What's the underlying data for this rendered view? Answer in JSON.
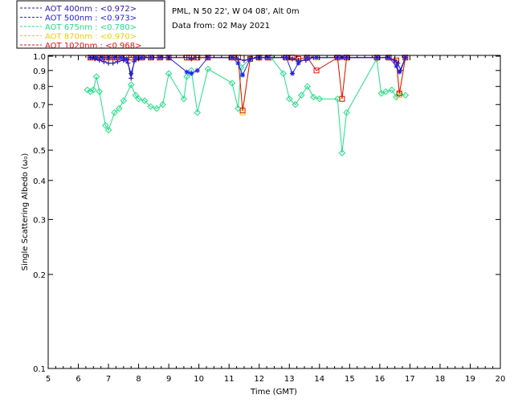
{
  "chart_data": {
    "type": "line",
    "title": "PML, N 50 22', W 04 08', Alt 0m",
    "subtitle": "Data from: 02 May 2021",
    "xlabel": "Time (GMT)",
    "ylabel": "Single Scattering Albedo (ω₀)",
    "xlim": [
      5,
      20
    ],
    "ylim": [
      0.1,
      1.0
    ],
    "yscale": "log",
    "x_ticks": [
      "5",
      "6",
      "7",
      "8",
      "9",
      "10",
      "11",
      "12",
      "13",
      "14",
      "15",
      "16",
      "17",
      "18",
      "19",
      "20"
    ],
    "y_ticks": [
      "0.1",
      "0.2",
      "0.3",
      "0.4",
      "0.5",
      "0.6",
      "0.7",
      "0.8",
      "0.9",
      "1.0"
    ],
    "y_tick_values": [
      0.1,
      0.2,
      0.3,
      0.4,
      0.5,
      0.6,
      0.7,
      0.8,
      0.9,
      1.0
    ],
    "series": [
      {
        "name": "AOT  400nm",
        "legend": "AOT  400nm : <0.972>",
        "color": "#2a1aa8",
        "marker": "plus",
        "x": [
          6.4,
          6.55,
          6.7,
          6.85,
          7.0,
          7.15,
          7.3,
          7.5,
          7.65,
          7.75,
          7.85,
          8.0,
          8.2,
          8.5,
          8.8,
          9.0,
          9.6,
          9.75,
          9.9,
          10.3,
          11.1,
          11.3,
          11.5,
          11.7,
          11.9,
          12.2,
          12.8,
          13.1,
          13.3,
          13.55,
          13.8,
          14.6,
          14.75,
          14.9,
          15.9,
          16.2,
          16.5,
          16.6,
          16.7,
          16.85
        ],
        "y": [
          0.99,
          0.98,
          0.97,
          0.96,
          0.95,
          0.95,
          0.96,
          0.97,
          0.95,
          0.85,
          0.96,
          0.98,
          0.99,
          0.99,
          0.99,
          0.99,
          0.99,
          0.98,
          0.99,
          0.99,
          0.99,
          0.98,
          0.97,
          0.98,
          0.99,
          0.99,
          0.99,
          0.98,
          0.97,
          0.97,
          0.99,
          0.99,
          0.99,
          0.99,
          0.99,
          0.99,
          0.97,
          0.95,
          0.9,
          0.99
        ]
      },
      {
        "name": "AOT  500nm",
        "legend": "AOT  500nm : <0.973>",
        "color": "#2222ee",
        "marker": "star",
        "x": [
          6.4,
          6.6,
          6.8,
          7.0,
          7.2,
          7.4,
          7.6,
          7.75,
          7.9,
          8.1,
          8.4,
          8.7,
          9.0,
          9.6,
          9.75,
          9.95,
          10.3,
          11.1,
          11.3,
          11.45,
          11.7,
          12.0,
          12.3,
          12.9,
          13.1,
          13.3,
          13.6,
          13.9,
          14.6,
          14.75,
          14.9,
          15.9,
          16.3,
          16.55,
          16.65,
          16.85
        ],
        "y": [
          0.99,
          0.99,
          0.99,
          0.99,
          0.99,
          0.99,
          0.98,
          0.88,
          0.99,
          0.99,
          0.99,
          0.99,
          0.99,
          0.89,
          0.88,
          0.9,
          0.99,
          0.99,
          0.95,
          0.87,
          0.98,
          0.99,
          0.99,
          0.99,
          0.88,
          0.95,
          0.99,
          0.99,
          0.99,
          0.99,
          0.99,
          0.99,
          0.99,
          0.93,
          0.89,
          0.99
        ]
      },
      {
        "name": "AOT  675nm",
        "legend": "AOT  675nm : <0.780>",
        "color": "#22dd88",
        "marker": "diamond",
        "x": [
          6.3,
          6.4,
          6.5,
          6.6,
          6.7,
          6.9,
          7.0,
          7.2,
          7.35,
          7.5,
          7.75,
          7.9,
          8.0,
          8.2,
          8.4,
          8.6,
          8.8,
          9.0,
          9.5,
          9.6,
          9.75,
          9.95,
          10.3,
          11.1,
          11.3,
          11.4,
          11.7,
          12.0,
          12.4,
          12.8,
          13.0,
          13.2,
          13.4,
          13.6,
          13.8,
          14.0,
          14.6,
          14.75,
          14.9,
          15.9,
          16.05,
          16.2,
          16.4,
          16.55,
          16.65,
          16.85
        ],
        "y": [
          0.78,
          0.77,
          0.78,
          0.86,
          0.77,
          0.6,
          0.58,
          0.66,
          0.68,
          0.72,
          0.81,
          0.75,
          0.73,
          0.72,
          0.69,
          0.68,
          0.7,
          0.88,
          0.73,
          0.86,
          0.9,
          0.66,
          0.91,
          0.82,
          0.68,
          0.92,
          0.98,
          0.99,
          0.99,
          0.88,
          0.73,
          0.7,
          0.75,
          0.8,
          0.74,
          0.73,
          0.73,
          0.49,
          0.66,
          0.98,
          0.76,
          0.77,
          0.78,
          0.74,
          0.76,
          0.75
        ]
      },
      {
        "name": "AOT  870nm",
        "legend": "AOT  870nm : <0.970>",
        "color": "#f2cc00",
        "marker": "square",
        "x": [
          6.4,
          6.6,
          6.8,
          7.0,
          7.2,
          7.4,
          7.6,
          7.75,
          7.9,
          8.1,
          8.4,
          8.7,
          9.0,
          9.6,
          9.75,
          9.95,
          10.3,
          11.1,
          11.3,
          11.45,
          11.7,
          12.0,
          12.3,
          12.9,
          13.1,
          13.3,
          13.6,
          13.9,
          14.6,
          14.75,
          14.9,
          15.9,
          16.3,
          16.55,
          16.65,
          16.85
        ],
        "y": [
          0.99,
          0.99,
          0.99,
          0.99,
          0.99,
          0.99,
          0.99,
          0.99,
          0.99,
          0.99,
          0.99,
          0.99,
          0.99,
          0.99,
          0.99,
          0.99,
          0.99,
          0.99,
          0.99,
          0.66,
          0.98,
          0.99,
          0.99,
          0.99,
          0.99,
          0.98,
          0.99,
          0.99,
          0.99,
          0.73,
          0.99,
          0.99,
          0.99,
          0.96,
          0.75,
          0.99
        ]
      },
      {
        "name": "AOT 1020nm",
        "legend": "AOT 1020nm : <0.968>",
        "color": "#dd1111",
        "marker": "square",
        "x": [
          6.4,
          6.6,
          6.8,
          7.0,
          7.2,
          7.4,
          7.6,
          7.75,
          7.9,
          8.1,
          8.4,
          8.7,
          9.0,
          9.6,
          9.75,
          9.95,
          10.3,
          11.1,
          11.3,
          11.45,
          11.7,
          12.0,
          12.3,
          12.9,
          13.1,
          13.3,
          13.6,
          13.9,
          14.6,
          14.75,
          14.9,
          15.9,
          16.3,
          16.55,
          16.65,
          16.85
        ],
        "y": [
          0.99,
          0.99,
          0.99,
          0.99,
          0.99,
          0.99,
          0.99,
          0.99,
          0.99,
          0.99,
          0.99,
          0.99,
          0.99,
          0.99,
          0.99,
          0.99,
          0.99,
          0.99,
          0.99,
          0.67,
          0.98,
          0.99,
          0.99,
          0.99,
          0.99,
          0.98,
          0.99,
          0.9,
          0.99,
          0.73,
          0.99,
          0.99,
          0.99,
          0.97,
          0.76,
          0.99
        ]
      }
    ]
  }
}
